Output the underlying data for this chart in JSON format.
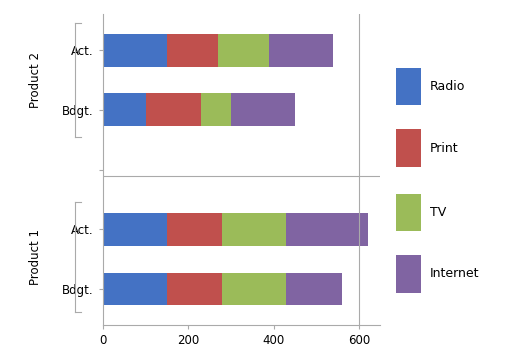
{
  "categories": [
    "Bdgt.",
    "Act.",
    "",
    "Bdgt.",
    "Act."
  ],
  "series": {
    "Radio": [
      150,
      150,
      0,
      100,
      150
    ],
    "Print": [
      130,
      130,
      0,
      130,
      120
    ],
    "TV": [
      150,
      150,
      0,
      70,
      120
    ],
    "Internet": [
      130,
      190,
      0,
      150,
      150
    ]
  },
  "colors": {
    "Radio": "#4472C4",
    "Print": "#C0504D",
    "TV": "#9BBB59",
    "Internet": "#8064A2"
  },
  "xlim": [
    0,
    650
  ],
  "xticks": [
    0,
    200,
    400,
    600
  ],
  "background": "#FFFFFF",
  "border_color": "#AAAAAA",
  "bar_height": 0.55,
  "group1_label": "Product 1",
  "group2_label": "Product 2",
  "legend_items": [
    "Radio",
    "Print",
    "TV",
    "Internet"
  ]
}
